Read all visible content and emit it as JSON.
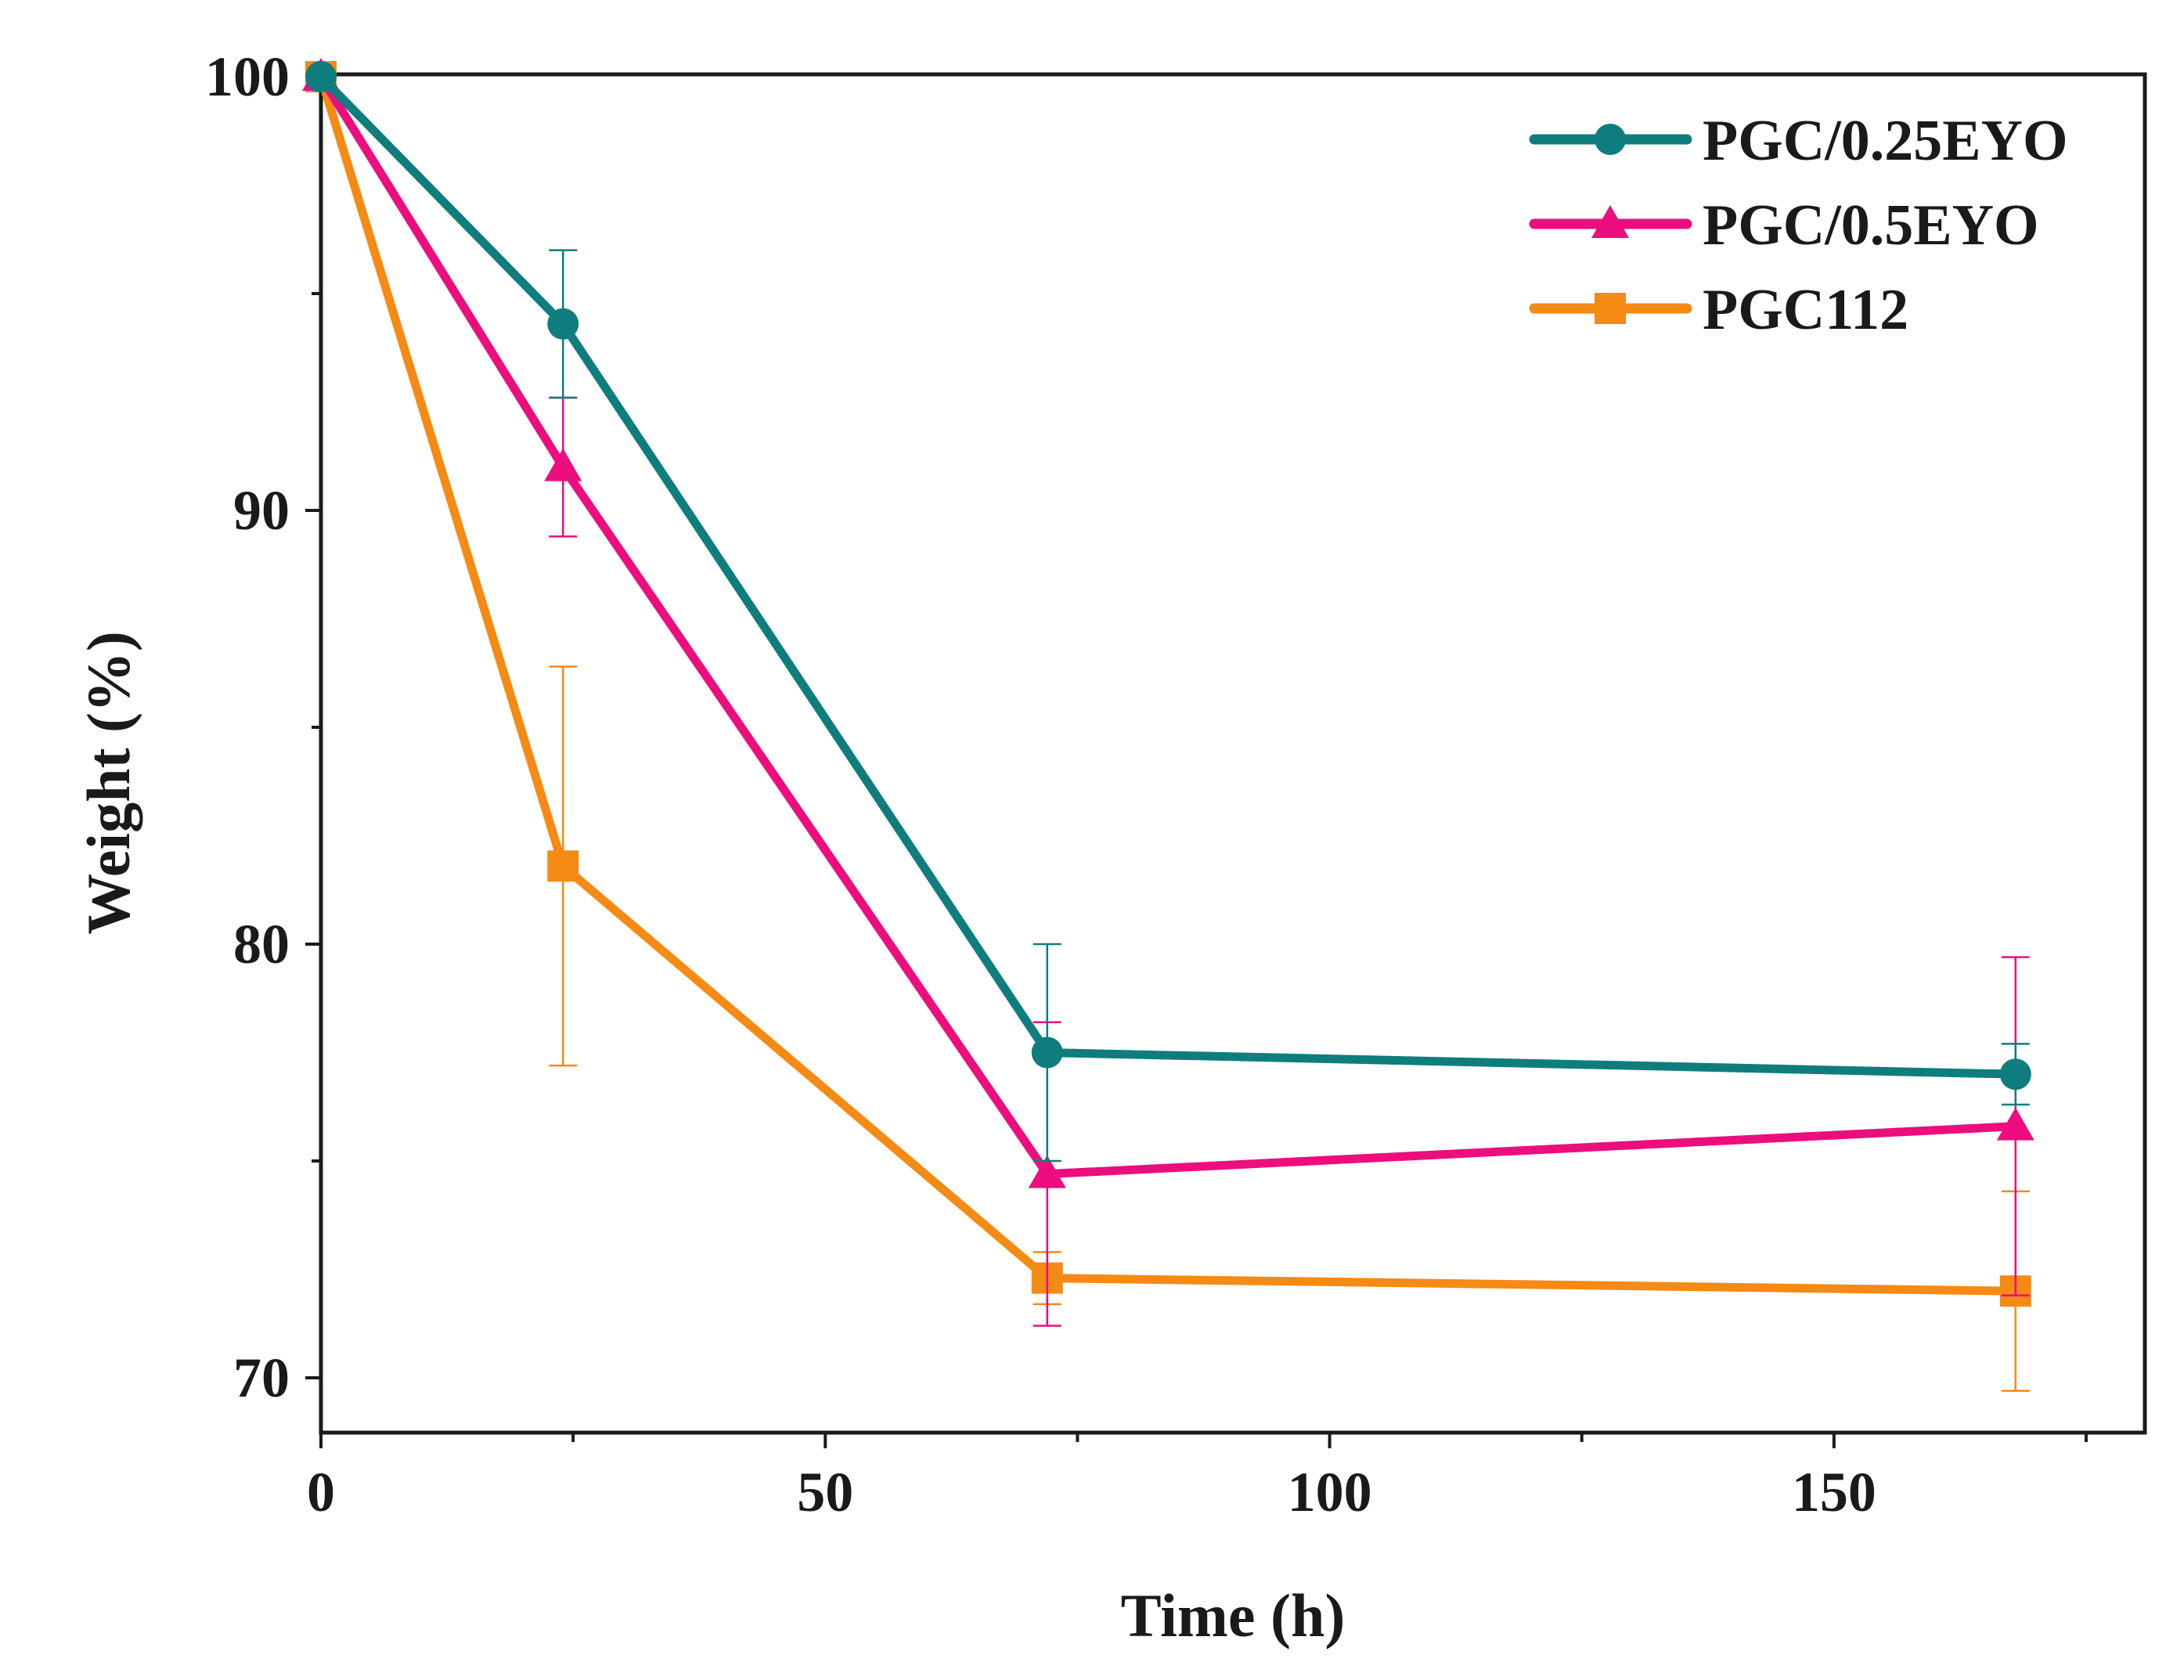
{
  "chart_data": {
    "type": "line",
    "title": "",
    "xlabel": "Time (h)",
    "ylabel": "Weight (%)",
    "xlim": [
      0,
      180
    ],
    "ylim": [
      69,
      100
    ],
    "x_ticks": [
      0,
      50,
      100,
      150
    ],
    "x_tick_labels": [
      "0",
      "50",
      "100",
      "150"
    ],
    "y_ticks": [
      70,
      80,
      90,
      100
    ],
    "y_tick_labels": [
      "70",
      "80",
      "90",
      "100"
    ],
    "grid": false,
    "legend_position": "top-right",
    "series": [
      {
        "name": "PGC/0.25EYO",
        "color": "#0f7d7e",
        "marker": "circle",
        "x": [
          0,
          24,
          72,
          168
        ],
        "y": [
          100,
          94.3,
          77.5,
          77.0
        ],
        "error": [
          0,
          1.7,
          2.5,
          0.7
        ]
      },
      {
        "name": "PGC/0.5EYO",
        "color": "#ec0e7e",
        "marker": "triangle",
        "x": [
          0,
          24,
          72,
          168
        ],
        "y": [
          100,
          91.0,
          74.7,
          75.8
        ],
        "error": [
          0,
          1.6,
          3.5,
          3.9
        ]
      },
      {
        "name": "PGC112",
        "color": "#f58a14",
        "marker": "square",
        "x": [
          0,
          24,
          72,
          168
        ],
        "y": [
          100,
          81.8,
          72.3,
          72.0
        ],
        "error": [
          0,
          4.6,
          0.6,
          2.3
        ]
      }
    ]
  }
}
